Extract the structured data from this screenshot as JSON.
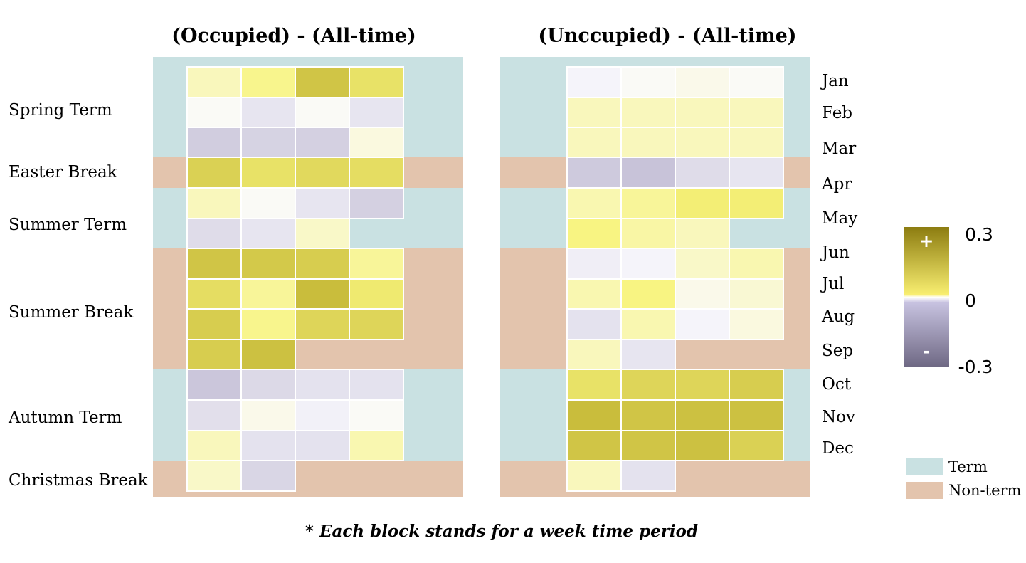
{
  "chart_data": {
    "type": "heatmap",
    "note": "* Each block stands for a week time period",
    "months": [
      "Jan",
      "Feb",
      "Mar",
      "Apr",
      "May",
      "Jun",
      "Jul",
      "Aug",
      "Sep",
      "Oct",
      "Nov",
      "Dec"
    ],
    "terms": [
      {
        "label": "Spring Term",
        "kind": "term",
        "rows": [
          0,
          3
        ]
      },
      {
        "label": "Easter Break",
        "kind": "break",
        "rows": [
          3,
          4
        ]
      },
      {
        "label": "Summer Term",
        "kind": "term",
        "rows": [
          4,
          6
        ]
      },
      {
        "label": "Summer Break",
        "kind": "break",
        "rows": [
          6,
          10
        ]
      },
      {
        "label": "Autumn Term",
        "kind": "term",
        "rows": [
          10,
          13
        ]
      },
      {
        "label": "Christmas Break",
        "kind": "break",
        "rows": [
          13,
          14
        ]
      }
    ],
    "colorbar": {
      "max": 0.3,
      "mid": 0,
      "min": -0.3,
      "max_label": "0.3",
      "mid_label": "0",
      "min_label": "-0.3",
      "plus": "+",
      "minus": "-",
      "colors": {
        "pos": "#8c7c10",
        "zero": "#f8f3a0",
        "neg": "#6e6883"
      }
    },
    "legend": [
      {
        "label": "Term",
        "color": "#c9e1e2"
      },
      {
        "label": "Non-term",
        "color": "#e3c4ad"
      }
    ],
    "panels": [
      {
        "title": "(Occupied) - (All-time)",
        "rows": [
          [
            0.05,
            0.09,
            0.22,
            0.15
          ],
          [
            0.0,
            -0.06,
            0.0,
            -0.06
          ],
          [
            -0.14,
            -0.12,
            -0.13,
            0.02
          ],
          [
            0.19,
            0.15,
            0.17,
            0.16
          ],
          [
            0.05,
            0.0,
            -0.06,
            -0.13
          ],
          [
            -0.09,
            -0.06,
            0.04
          ],
          [
            0.22,
            0.21,
            0.2,
            0.08
          ],
          [
            0.16,
            0.08,
            0.24,
            0.13
          ],
          [
            0.2,
            0.09,
            0.18,
            0.18
          ],
          [
            0.2,
            0.23
          ],
          [
            -0.16,
            -0.1,
            -0.07,
            -0.07
          ],
          [
            -0.08,
            0.01,
            -0.02,
            0.0
          ],
          [
            0.05,
            -0.07,
            -0.07,
            0.06
          ],
          [
            0.04,
            -0.11
          ]
        ]
      },
      {
        "title": "(Unccupied)  - (All-time)",
        "rows": [
          [
            -0.01,
            0.0,
            0.01,
            0.0
          ],
          [
            0.05,
            0.05,
            0.05,
            0.05
          ],
          [
            0.05,
            0.05,
            0.05,
            0.05
          ],
          [
            -0.15,
            -0.17,
            -0.09,
            -0.06
          ],
          [
            0.06,
            0.08,
            0.12,
            0.12
          ],
          [
            0.1,
            0.07,
            0.05
          ],
          [
            -0.03,
            -0.01,
            0.04,
            0.06
          ],
          [
            0.06,
            0.1,
            0.01,
            0.03
          ],
          [
            -0.07,
            0.06,
            -0.01,
            0.02
          ],
          [
            0.05,
            -0.06
          ],
          [
            0.15,
            0.18,
            0.18,
            0.2
          ],
          [
            0.24,
            0.22,
            0.23,
            0.23
          ],
          [
            0.22,
            0.22,
            0.23,
            0.19
          ],
          [
            0.05,
            -0.07
          ]
        ]
      }
    ]
  }
}
